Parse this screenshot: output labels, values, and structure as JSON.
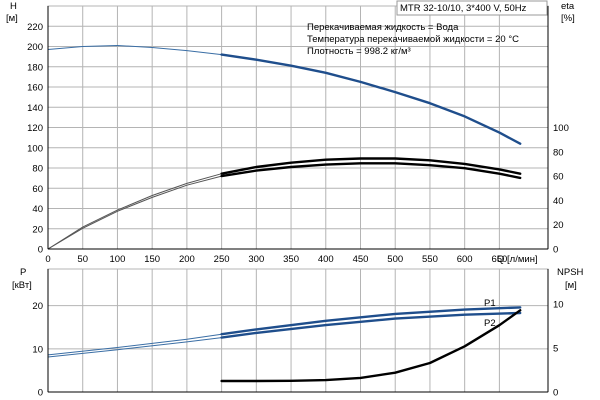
{
  "chart_data": [
    {
      "type": "line",
      "panel": "head-efficiency",
      "title": "MTR 32-10/10, 3*400 V, 50Hz",
      "annotations": [
        "Перекачиваемая жидкость = Вода",
        "Температура перекачиваемой жидкости = 20 °C",
        "Плотность = 998.2 кг/м³"
      ],
      "xlabel": "Q [л/мин]",
      "x_tick_labels": [
        "0",
        "50",
        "100",
        "150",
        "200",
        "250",
        "300",
        "350",
        "400",
        "450",
        "500",
        "550",
        "600",
        "650"
      ],
      "xlim": [
        0,
        720
      ],
      "left_axis": {
        "label_top": "H",
        "label_unit": "[м]",
        "ylim": [
          0,
          240
        ],
        "tick_labels": [
          "0",
          "20",
          "40",
          "60",
          "80",
          "100",
          "120",
          "140",
          "160",
          "180",
          "200",
          "220"
        ]
      },
      "right_axis": {
        "label_top": "eta",
        "label_unit": "[%]",
        "ylim": [
          0,
          200
        ],
        "tick_labels": [
          "0",
          "20",
          "40",
          "60",
          "80",
          "100"
        ]
      },
      "grid": true,
      "series": [
        {
          "axis": "left",
          "color": "#3a6ea5",
          "color_bold": "#1f4e8c",
          "bold_from_x": 250,
          "x": [
            0,
            50,
            100,
            150,
            200,
            250,
            300,
            350,
            400,
            450,
            500,
            550,
            600,
            650,
            680
          ],
          "y": [
            197,
            200,
            201,
            199,
            196,
            192,
            187,
            181,
            174,
            165,
            155,
            144,
            131,
            115,
            104
          ]
        },
        {
          "axis": "right",
          "color": "#555555",
          "color_bold": "#000000",
          "bold_from_x": 250,
          "x": [
            0,
            50,
            100,
            150,
            200,
            250,
            300,
            350,
            400,
            450,
            500,
            550,
            600,
            650,
            680
          ],
          "y": [
            0,
            18,
            32,
            44,
            54,
            62,
            67.5,
            71,
            73.5,
            74.5,
            74.5,
            73,
            70,
            65.5,
            62
          ]
        },
        {
          "axis": "right",
          "color": "#555555",
          "color_bold": "#000000",
          "bold_from_x": 250,
          "x": [
            0,
            50,
            100,
            150,
            200,
            250,
            300,
            350,
            400,
            450,
            500,
            550,
            600,
            650,
            680
          ],
          "y": [
            0,
            17,
            31,
            42.5,
            52.5,
            60,
            64.5,
            67.5,
            69.5,
            70.5,
            70.5,
            69,
            66.5,
            62,
            58.5
          ]
        }
      ]
    },
    {
      "type": "line",
      "panel": "power-npsh",
      "xlim": [
        0,
        720
      ],
      "left_axis": {
        "label_top": "P",
        "label_unit": "[кВт]",
        "ylim": [
          0,
          28.5
        ],
        "tick_labels": [
          "0",
          "10",
          "20"
        ]
      },
      "right_axis": {
        "label_top": "NPSH",
        "label_unit": "[м]",
        "ylim": [
          0,
          14
        ],
        "tick_labels": [
          "0",
          "5",
          "10"
        ]
      },
      "grid": true,
      "series": [
        {
          "name": "P1",
          "axis": "left",
          "color": "#3a6ea5",
          "color_bold": "#1f4e8c",
          "bold_from_x": 250,
          "x": [
            0,
            100,
            200,
            250,
            300,
            400,
            500,
            600,
            680
          ],
          "y": [
            8.6,
            10.3,
            12.2,
            13.4,
            14.5,
            16.5,
            18.1,
            19.1,
            19.6
          ]
        },
        {
          "name": "P2",
          "axis": "left",
          "color": "#3a6ea5",
          "color_bold": "#1f4e8c",
          "bold_from_x": 250,
          "x": [
            0,
            100,
            200,
            250,
            300,
            400,
            500,
            600,
            680
          ],
          "y": [
            8.1,
            9.8,
            11.6,
            12.6,
            13.7,
            15.5,
            17.0,
            17.9,
            18.3
          ]
        },
        {
          "axis": "right",
          "color": "#000000",
          "color_bold": "#000000",
          "bold_from_x": 0,
          "x": [
            250,
            300,
            350,
            400,
            450,
            500,
            550,
            600,
            650,
            680
          ],
          "y": [
            1.25,
            1.25,
            1.27,
            1.35,
            1.6,
            2.2,
            3.3,
            5.2,
            7.6,
            9.3
          ]
        }
      ]
    }
  ]
}
